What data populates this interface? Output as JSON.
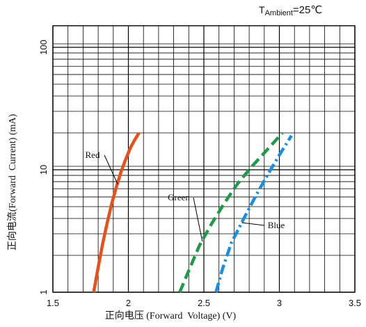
{
  "chart_data": {
    "type": "line",
    "annotation": {
      "prefix": "T",
      "subscript": "Ambient",
      "suffix": "=25℃"
    },
    "xlabel": "正向电压 (Forward  Voltage) (V)",
    "ylabel": "正向电流(Forward  Current) (mA)",
    "xlim": [
      1.5,
      3.5
    ],
    "ylim": [
      1,
      150
    ],
    "yscale": "log",
    "grid": true,
    "x_ticks": [
      {
        "value": 1.5,
        "label": "1.5"
      },
      {
        "value": 2.0,
        "label": "2"
      },
      {
        "value": 2.5,
        "label": "2.5"
      },
      {
        "value": 3.0,
        "label": "3"
      },
      {
        "value": 3.5,
        "label": "3.5"
      }
    ],
    "y_ticks": [
      {
        "value": 1,
        "label": "1"
      },
      {
        "value": 10,
        "label": "10"
      },
      {
        "value": 100,
        "label": "100"
      }
    ],
    "series": [
      {
        "name": "Red",
        "color": "#e8501a",
        "style": "solid",
        "x": [
          1.77,
          1.8,
          1.83,
          1.86,
          1.89,
          1.92,
          1.95,
          1.98,
          2.01,
          2.04,
          2.07
        ],
        "y": [
          1.0,
          1.6,
          2.5,
          3.7,
          5.3,
          7.2,
          9.5,
          12.0,
          14.8,
          17.4,
          20.0
        ]
      },
      {
        "name": "Green",
        "color": "#1e9a4a",
        "style": "dash",
        "x": [
          2.34,
          2.4,
          2.47,
          2.55,
          2.63,
          2.72,
          2.82,
          2.92,
          3.02
        ],
        "y": [
          1.0,
          1.5,
          2.4,
          3.6,
          5.2,
          7.6,
          10.7,
          14.6,
          20.0
        ]
      },
      {
        "name": "Blue",
        "color": "#1a8fe0",
        "style": "dashdot",
        "x": [
          2.58,
          2.62,
          2.68,
          2.76,
          2.84,
          2.92,
          3.0,
          3.08
        ],
        "y": [
          1.0,
          1.5,
          2.5,
          3.9,
          6.0,
          9.0,
          13.2,
          19.0
        ]
      }
    ]
  }
}
